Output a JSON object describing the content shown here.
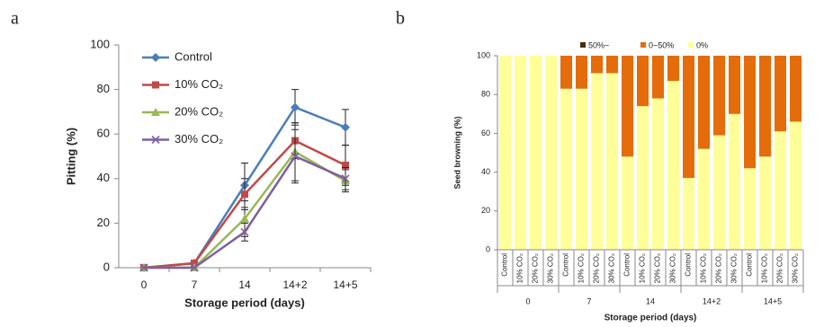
{
  "chart_data": [
    {
      "type": "line",
      "panel_label": "a",
      "ylabel": "Pitting (%)",
      "xlabel": "Storage period (days)",
      "categories": [
        "0",
        "7",
        "14",
        "14+2",
        "14+5"
      ],
      "ylim": [
        0,
        100
      ],
      "yticks": [
        0,
        20,
        40,
        60,
        80,
        100
      ],
      "series": [
        {
          "name": "Control",
          "color": "#4a7ebb",
          "marker": "diamond",
          "values": [
            0,
            2,
            37,
            72,
            63
          ],
          "errors": [
            0,
            0,
            10,
            8,
            8
          ]
        },
        {
          "name": "10% CO₂",
          "color": "#be4b48",
          "marker": "square",
          "values": [
            0,
            2,
            33,
            57,
            46
          ],
          "errors": [
            0,
            0,
            7,
            8,
            9
          ]
        },
        {
          "name": "20% CO₂",
          "color": "#98b954",
          "marker": "triangle",
          "values": [
            0,
            0,
            22,
            52,
            39
          ],
          "errors": [
            0,
            0,
            8,
            13,
            5
          ]
        },
        {
          "name": "30% CO₂",
          "color": "#7d60a0",
          "marker": "x",
          "values": [
            0,
            0,
            16,
            50,
            40
          ],
          "errors": [
            0,
            0,
            4,
            12,
            5
          ]
        }
      ]
    },
    {
      "type": "stacked-bar",
      "panel_label": "b",
      "ylabel": "Seed browning (%)",
      "xlabel": "Storage period (days)",
      "categories": [
        "Control",
        "10% CO₂",
        "20% CO₂",
        "30% CO₂",
        "Control",
        "10% CO₂",
        "20% CO₂",
        "30% CO₂",
        "Control",
        "10% CO₂",
        "20% CO₂",
        "30% CO₂",
        "Control",
        "10% CO₂",
        "20% CO₂",
        "30% CO₂",
        "Control",
        "10% CO₂",
        "20% CO₂",
        "30% CO₂"
      ],
      "groups": [
        "0",
        "7",
        "14",
        "14+2",
        "14+5"
      ],
      "ylim": [
        0,
        100
      ],
      "yticks": [
        0,
        20,
        40,
        60,
        80,
        100
      ],
      "series": [
        {
          "name": "50%~",
          "color": "#4a2a0a",
          "values": [
            0,
            0,
            0,
            0,
            0,
            0,
            0,
            0,
            0,
            0,
            0,
            0,
            0,
            0,
            0,
            0,
            0,
            0,
            0,
            0
          ]
        },
        {
          "name": "0~50%",
          "color": "#e46c0a",
          "values": [
            0,
            0,
            0,
            0,
            17,
            17,
            9,
            9,
            52,
            26,
            22,
            13,
            63,
            48,
            41,
            30,
            58,
            52,
            39,
            34
          ]
        },
        {
          "name": "0%",
          "color": "#ffff99",
          "values": [
            100,
            100,
            100,
            100,
            83,
            83,
            91,
            91,
            48,
            74,
            78,
            87,
            37,
            52,
            59,
            70,
            42,
            48,
            61,
            66
          ]
        }
      ]
    }
  ]
}
